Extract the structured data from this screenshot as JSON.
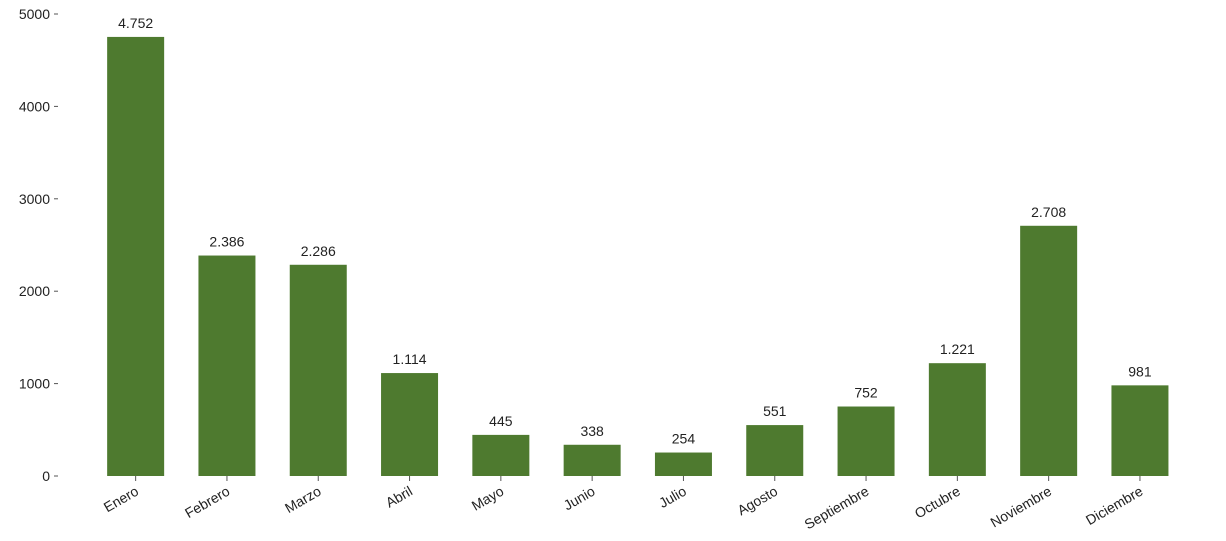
{
  "chart_data": {
    "type": "bar",
    "categories": [
      "Enero",
      "Febrero",
      "Marzo",
      "Abril",
      "Mayo",
      "Junio",
      "Julio",
      "Agosto",
      "Septiembre",
      "Octubre",
      "Noviembre",
      "Diciembre"
    ],
    "values": [
      4752,
      2386,
      2286,
      1114,
      445,
      338,
      254,
      551,
      752,
      1221,
      2708,
      981
    ],
    "data_labels": [
      "4.752",
      "2.386",
      "2.286",
      "1.114",
      "445",
      "338",
      "254",
      "551",
      "752",
      "1.221",
      "2.708",
      "981"
    ],
    "y_ticks": [
      0,
      1000,
      2000,
      3000,
      4000,
      5000
    ],
    "ylim": [
      0,
      5000
    ],
    "grid": false,
    "legend": "none",
    "bar_color": "#4e7a2f",
    "title": "",
    "xlabel": "",
    "ylabel": ""
  }
}
